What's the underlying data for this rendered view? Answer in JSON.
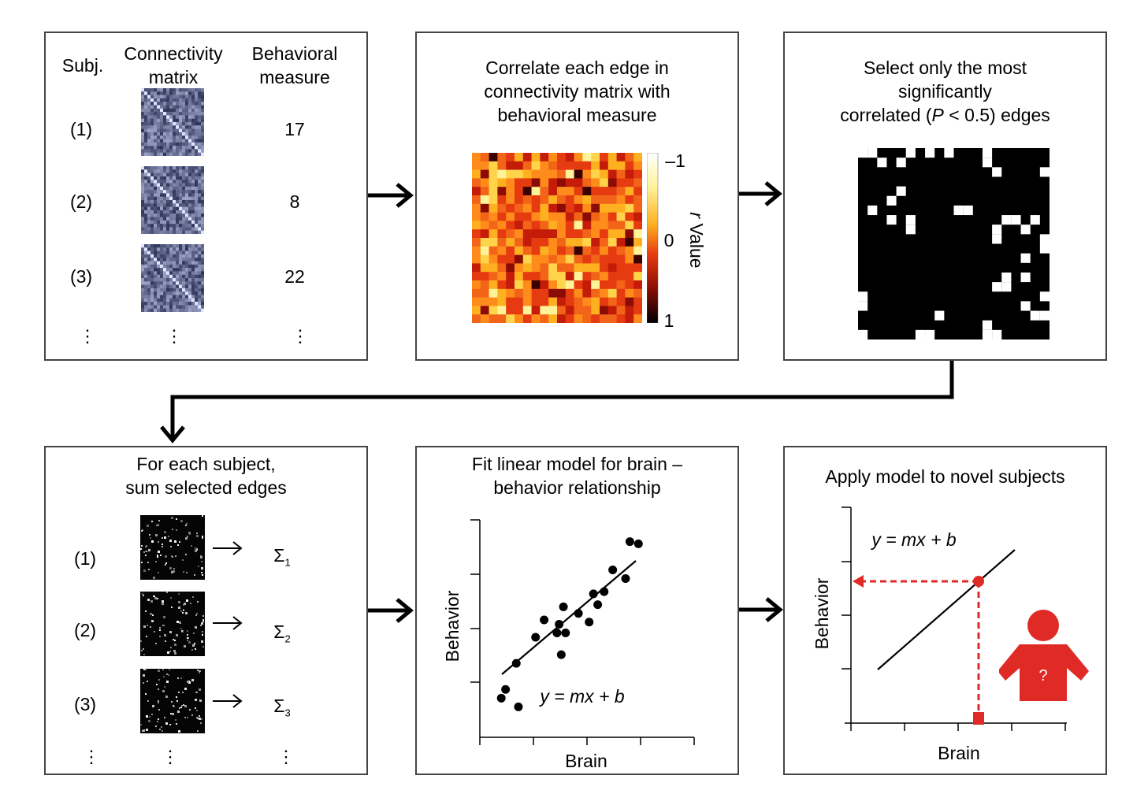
{
  "panel1": {
    "col_subj": "Subj.",
    "col_conn_line1": "Connectivity",
    "col_conn_line2": "matrix",
    "col_beh_line1": "Behavioral",
    "col_beh_line2": "measure",
    "rows": [
      {
        "subj": "(1)",
        "value": "17"
      },
      {
        "subj": "(2)",
        "value": "8"
      },
      {
        "subj": "(3)",
        "value": "22"
      }
    ],
    "ellipsis": "⋮"
  },
  "panel2": {
    "title_line1": "Correlate each edge in",
    "title_line2": "connectivity matrix with",
    "title_line3": "behavioral measure",
    "colorbar_top": "–1",
    "colorbar_mid": "0",
    "colorbar_bottom": "1",
    "colorbar_label_r": "r",
    "colorbar_label_rest": " Value"
  },
  "panel3": {
    "title_line1": "Select only the most",
    "title_line2": "significantly",
    "title_line3_pre": "correlated (",
    "title_line3_p": "P",
    "title_line3_post": " < 0.5) edges"
  },
  "panel4": {
    "title_line1": "For each subject,",
    "title_line2": "sum selected edges",
    "rows": [
      {
        "subj": "(1)",
        "sigma": "Σ",
        "sub": "1"
      },
      {
        "subj": "(2)",
        "sigma": "Σ",
        "sub": "2"
      },
      {
        "subj": "(3)",
        "sigma": "Σ",
        "sub": "3"
      }
    ],
    "ellipsis": "⋮"
  },
  "panel5": {
    "title_line1": "Fit linear model for brain –",
    "title_line2": "behavior relationship",
    "equation": "y = mx + b",
    "xlabel": "Brain",
    "ylabel": "Behavior"
  },
  "panel6": {
    "title": "Apply model to novel subjects",
    "equation": "y = mx + b",
    "xlabel": "Brain",
    "ylabel": "Behavior",
    "person_mark": "?"
  },
  "colors": {
    "panel_border": "#444444",
    "arrow": "#000000",
    "highlight_red": "#e02a25",
    "connectivity_blue": "#5a6688",
    "heatmap_low": "#fff9b0",
    "heatmap_high": "#200000"
  },
  "chart_data": {
    "type": "scatter",
    "xlabel": "Brain",
    "ylabel": "Behavior",
    "points": [
      [
        0.1,
        0.82
      ],
      [
        0.12,
        0.78
      ],
      [
        0.18,
        0.86
      ],
      [
        0.17,
        0.66
      ],
      [
        0.26,
        0.54
      ],
      [
        0.3,
        0.46
      ],
      [
        0.36,
        0.52
      ],
      [
        0.37,
        0.48
      ],
      [
        0.38,
        0.62
      ],
      [
        0.4,
        0.52
      ],
      [
        0.39,
        0.4
      ],
      [
        0.46,
        0.43
      ],
      [
        0.51,
        0.47
      ],
      [
        0.53,
        0.34
      ],
      [
        0.55,
        0.39
      ],
      [
        0.58,
        0.33
      ],
      [
        0.62,
        0.23
      ],
      [
        0.68,
        0.27
      ],
      [
        0.7,
        0.1
      ],
      [
        0.74,
        0.11
      ]
    ]
  }
}
